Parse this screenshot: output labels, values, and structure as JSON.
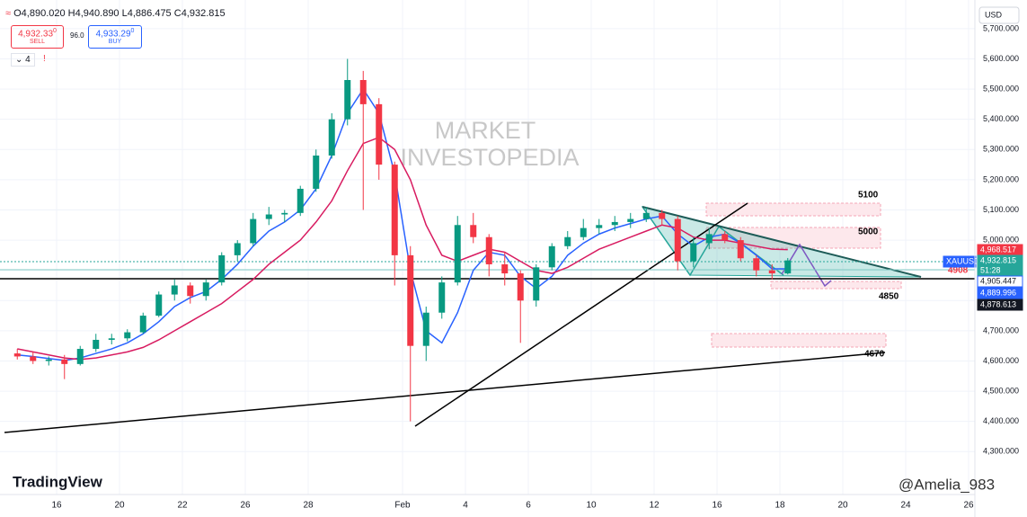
{
  "header": {
    "open": "O4,890.020",
    "high": "H4,940.890",
    "low": "L4,886.475",
    "close": "C4,932.815",
    "sell_price": "4,932.33",
    "sell_price_sup": "0",
    "sell_label": "SELL",
    "spread": "96.0",
    "buy_price": "4,933.29",
    "buy_price_sup": "0",
    "buy_label": "BUY",
    "indicator_count": "4",
    "currency": "USD"
  },
  "chart_data": {
    "type": "candlestick",
    "watermark": [
      "MARKET",
      "INVESTOPEDIA"
    ],
    "categories": [
      null,
      null,
      "16",
      null,
      null,
      null,
      "20",
      null,
      null,
      null,
      "22",
      null,
      null,
      null,
      "26",
      null,
      null,
      null,
      "28",
      null,
      null,
      null,
      null,
      null,
      "Feb",
      null,
      null,
      null,
      "4",
      null,
      null,
      null,
      "6",
      null,
      null,
      null,
      "10",
      null,
      null,
      null,
      "12",
      null,
      null,
      null,
      "16",
      null,
      null,
      null,
      "18",
      null,
      null,
      null,
      "20",
      null,
      null,
      null,
      "24",
      null,
      null,
      null,
      "26",
      null
    ],
    "open": [
      4625,
      4615,
      4600,
      4605,
      4590,
      4640,
      4670,
      4675,
      4695,
      4750,
      4820,
      4850,
      4815,
      4860,
      4950,
      4990,
      5070,
      5085,
      5090,
      5170,
      5280,
      5400,
      5530,
      5450,
      5250,
      4950,
      4650,
      4760,
      4860,
      5050,
      5010,
      4920,
      4890,
      4800,
      4910,
      4980,
      5010,
      5040,
      5050,
      5060,
      5070,
      5090,
      5070,
      4930,
      4990,
      5020,
      5000,
      4940,
      4900,
      4890.02,
      null,
      null,
      null,
      null,
      null,
      null,
      null,
      null,
      null,
      null,
      null,
      null
    ],
    "high": [
      4640,
      4630,
      4615,
      4620,
      4650,
      4690,
      4690,
      4705,
      4760,
      4830,
      4870,
      4860,
      4870,
      4960,
      5000,
      5090,
      5110,
      5100,
      5180,
      5300,
      5420,
      5600,
      5560,
      5470,
      5260,
      4980,
      4780,
      4880,
      5080,
      5090,
      5020,
      4960,
      4900,
      4920,
      4990,
      5030,
      5070,
      5070,
      5080,
      5090,
      5110,
      5100,
      5080,
      5010,
      5040,
      5030,
      5010,
      4950,
      4920,
      4940.89,
      null,
      null,
      null,
      null,
      null,
      null,
      null,
      null,
      null,
      null,
      null,
      null
    ],
    "low": [
      4605,
      4590,
      4585,
      4540,
      4585,
      4630,
      4655,
      4665,
      4690,
      4745,
      4800,
      4790,
      4800,
      4850,
      4930,
      4980,
      5050,
      5060,
      5080,
      5160,
      5270,
      5380,
      5100,
      5200,
      4850,
      4400,
      4600,
      4740,
      4850,
      4990,
      4880,
      4850,
      4660,
      4780,
      4900,
      4970,
      5000,
      5020,
      5030,
      5040,
      5060,
      5050,
      4900,
      4910,
      4970,
      4990,
      4930,
      4880,
      4870,
      4886.475,
      null,
      null,
      null,
      null,
      null,
      null,
      null,
      null,
      null,
      null,
      null,
      null
    ],
    "close": [
      4615,
      4600,
      4605,
      4590,
      4640,
      4670,
      4675,
      4695,
      4750,
      4820,
      4850,
      4815,
      4860,
      4950,
      4990,
      5070,
      5085,
      5090,
      5170,
      5280,
      5400,
      5530,
      5450,
      5250,
      4950,
      4650,
      4760,
      4860,
      5050,
      5010,
      4920,
      4890,
      4800,
      4910,
      4980,
      5010,
      5040,
      5050,
      5060,
      5070,
      5090,
      5070,
      4930,
      4990,
      5020,
      5000,
      4940,
      4900,
      4890.02,
      4932.815,
      null,
      null,
      null,
      null,
      null,
      null,
      null,
      null,
      null,
      null,
      null,
      null
    ],
    "up_color": "#089981",
    "down_color": "#f23645",
    "series": [
      {
        "color": "#2962ff",
        "values": [
          4620,
          4615,
          4608,
          4602,
          4610,
          4625,
          4640,
          4660,
          4690,
          4730,
          4780,
          4810,
          4830,
          4870,
          4920,
          4980,
          5030,
          5060,
          5100,
          5170,
          5280,
          5420,
          5500,
          5420,
          5220,
          4900,
          4700,
          4660,
          4760,
          4900,
          4960,
          4950,
          4880,
          4840,
          4880,
          4950,
          4990,
          5020,
          5040,
          5055,
          5070,
          5080,
          5020,
          4980,
          5010,
          5020,
          4990,
          4950,
          4905,
          4905,
          null,
          null,
          null,
          null,
          null,
          null,
          null,
          null,
          null,
          null,
          null,
          null
        ]
      },
      {
        "color": "#d81b60",
        "values": [
          4640,
          4630,
          4620,
          4610,
          4605,
          4610,
          4620,
          4630,
          4645,
          4670,
          4700,
          4730,
          4760,
          4790,
          4830,
          4870,
          4920,
          4960,
          5000,
          5060,
          5130,
          5230,
          5320,
          5340,
          5300,
          5200,
          5050,
          4950,
          4930,
          4950,
          4970,
          4960,
          4930,
          4900,
          4890,
          4910,
          4940,
          4970,
          4990,
          5010,
          5030,
          5050,
          5040,
          5010,
          5000,
          5000,
          4990,
          4980,
          4970,
          4968.5,
          null,
          null,
          null,
          null,
          null,
          null,
          null,
          null,
          null,
          null,
          null,
          null
        ]
      }
    ],
    "ylim": [
      4158,
      5780
    ],
    "yticks": [
      {
        "value": 5700,
        "label": "5,700.000"
      },
      {
        "value": 5600,
        "label": "5,600.000"
      },
      {
        "value": 5500,
        "label": "5,500.000"
      },
      {
        "value": 5400,
        "label": "5,400.000"
      },
      {
        "value": 5300,
        "label": "5,300.000"
      },
      {
        "value": 5200,
        "label": "5,200.000"
      },
      {
        "value": 5100,
        "label": "5,100.000"
      },
      {
        "value": 5000,
        "label": "5,000.000"
      },
      {
        "value": 4900,
        "label": "4,900.000"
      },
      {
        "value": 4800,
        "label": "4,800.000"
      },
      {
        "value": 4700,
        "label": "4,700.000"
      },
      {
        "value": 4600,
        "label": "4,600.000"
      },
      {
        "value": 4500,
        "label": "4,500.000"
      },
      {
        "value": 4400,
        "label": "4,400.000"
      },
      {
        "value": 4300,
        "label": "4,300.000"
      }
    ],
    "grid": true,
    "annotations": [
      "5100",
      "5000",
      "4850",
      "4670",
      "4908"
    ],
    "price_tags": [
      "4,968.517",
      "XAUUSD",
      "4,932.815",
      "51:28",
      "4,905.447",
      "4,889.996",
      "4,878.613"
    ],
    "branding": "TradingView",
    "author": "@Amelia_983"
  }
}
